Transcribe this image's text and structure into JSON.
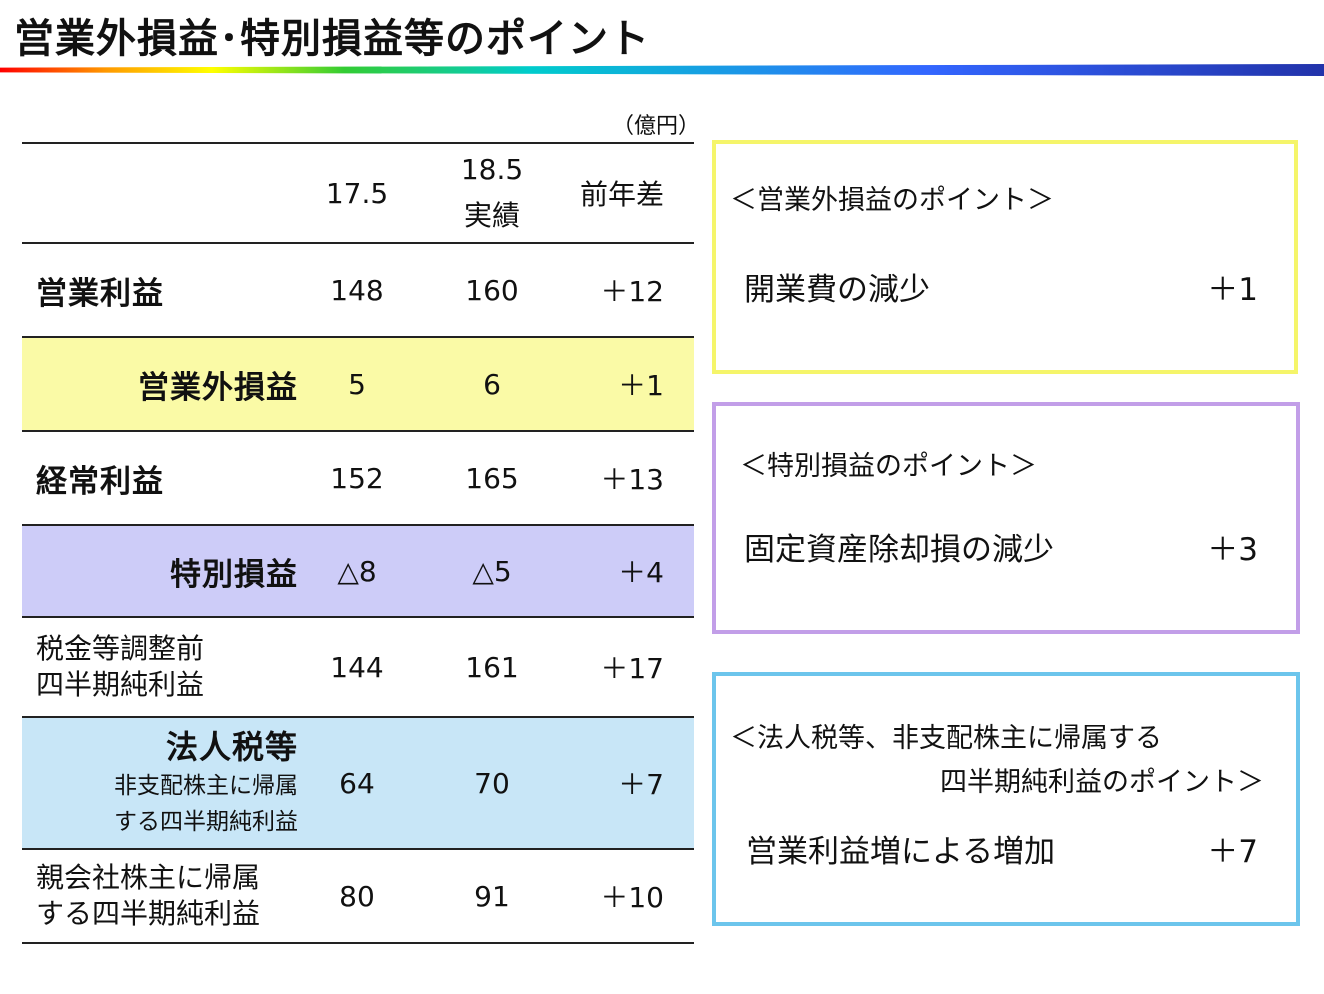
{
  "title": "営業外損益･特別損益等のポイント",
  "unit": "（億円）",
  "header": {
    "col1": "17.5",
    "col2_line1": "18.5",
    "col2_line2": "実績",
    "col3": "前年差"
  },
  "rows": [
    {
      "label": "営業利益",
      "v1": "148",
      "v2": "160",
      "v3": "＋12"
    },
    {
      "label": "営業外損益",
      "v1": "5",
      "v2": "6",
      "v3": "＋1"
    },
    {
      "label": "経常利益",
      "v1": "152",
      "v2": "165",
      "v3": "＋13"
    },
    {
      "label": "特別損益",
      "v1": "△8",
      "v2": "△5",
      "v3": "＋4"
    },
    {
      "label_line1": "税金等調整前",
      "label_line2": "四半期純利益",
      "v1": "144",
      "v2": "161",
      "v3": "＋17"
    },
    {
      "label_line1": "法人税等",
      "label_line2": "非支配株主に帰属",
      "label_line3": "する四半期純利益",
      "v1": "64",
      "v2": "70",
      "v3": "＋7"
    },
    {
      "label_line1": "親会社株主に帰属",
      "label_line2": "する四半期純利益",
      "v1": "80",
      "v2": "91",
      "v3": "＋10"
    }
  ],
  "boxes": [
    {
      "heading": "＜営業外損益のポイント＞",
      "item": "開業費の減少",
      "value": "＋1",
      "color": "#f5f56a"
    },
    {
      "heading": "＜特別損益のポイント＞",
      "item": "固定資産除却損の減少",
      "value": "＋3",
      "color": "#c29ee8"
    },
    {
      "heading_line1": "＜法人税等、非支配株主に帰属する",
      "heading_line2": "四半期純利益のポイント＞",
      "item": "営業利益増による増加",
      "value": "＋7",
      "color": "#6cc5ec"
    }
  ],
  "colors": {
    "row_yellow": "#fafaa6",
    "row_purple": "#cdccf8",
    "row_blue": "#c8e6f7"
  }
}
